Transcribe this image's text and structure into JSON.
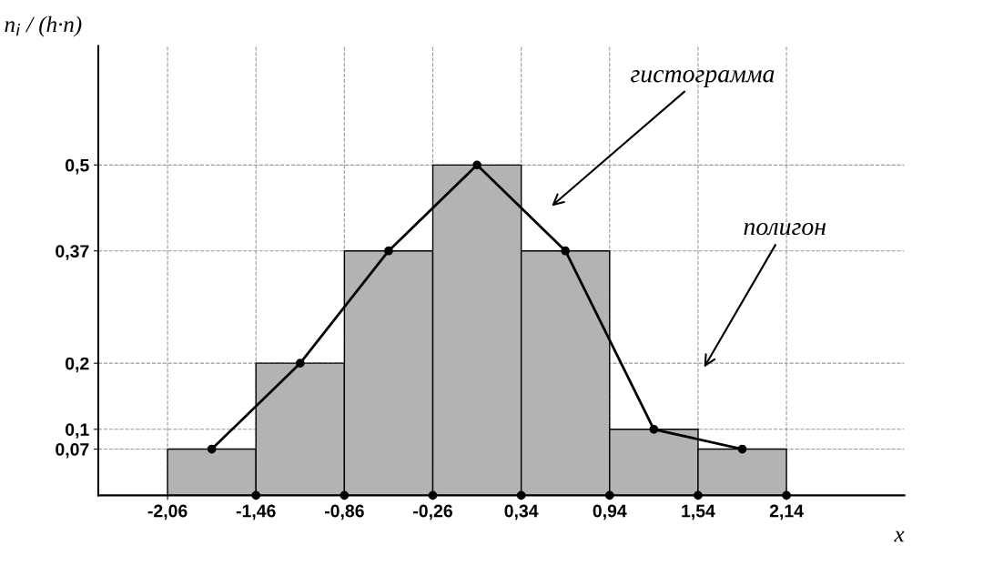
{
  "chart_data": {
    "type": "histogram",
    "xlabel": "x",
    "ylabel": "n$_{i}$ / (h·n)",
    "bins": [
      -2.06,
      -1.46,
      -0.86,
      -0.26,
      0.34,
      0.94,
      1.54,
      2.14
    ],
    "series": [
      {
        "values": [
          0.07,
          0.2,
          0.37,
          0.5,
          0.37,
          0.1,
          0.07
        ],
        "color": "#b3b3b3"
      },
      {
        "type": "line",
        "x": [
          -1.76,
          -1.16,
          -0.56,
          0.04,
          0.64,
          1.24,
          1.84
        ],
        "values": [
          0.07,
          0.2,
          0.37,
          0.5,
          0.37,
          0.1,
          0.07
        ],
        "color": "#000000",
        "marker": "circle",
        "line_style": "solid"
      },
      {
        "type": "scatter",
        "x": [
          -1.46,
          -0.86,
          -0.26,
          0.34,
          0.94,
          1.54,
          2.14
        ],
        "values": [
          0,
          0,
          0,
          0,
          0,
          0,
          0
        ],
        "color": "#000000",
        "marker": "circle"
      }
    ],
    "xlim": [
      -2.53,
      2.94
    ],
    "ylim": [
      0,
      0.68
    ],
    "xticks": [
      {
        "value": -2.06,
        "label": "-2,06"
      },
      {
        "value": -1.46,
        "label": "-1,46"
      },
      {
        "value": -0.86,
        "label": "-0,86"
      },
      {
        "value": -0.26,
        "label": "-0,26"
      },
      {
        "value": 0.34,
        "label": "0,34"
      },
      {
        "value": 0.94,
        "label": "0,94"
      },
      {
        "value": 1.54,
        "label": "1,54"
      },
      {
        "value": 2.14,
        "label": "2,14"
      }
    ],
    "yticks": [
      {
        "value": 0.07,
        "label": "0,07"
      },
      {
        "value": 0.1,
        "label": "0,1"
      },
      {
        "value": 0.2,
        "label": "0,2"
      },
      {
        "value": 0.37,
        "label": "0,37"
      },
      {
        "value": 0.5,
        "label": "0,5"
      }
    ],
    "grid": true,
    "annotations": [
      "гистограмма",
      "полигон"
    ]
  }
}
